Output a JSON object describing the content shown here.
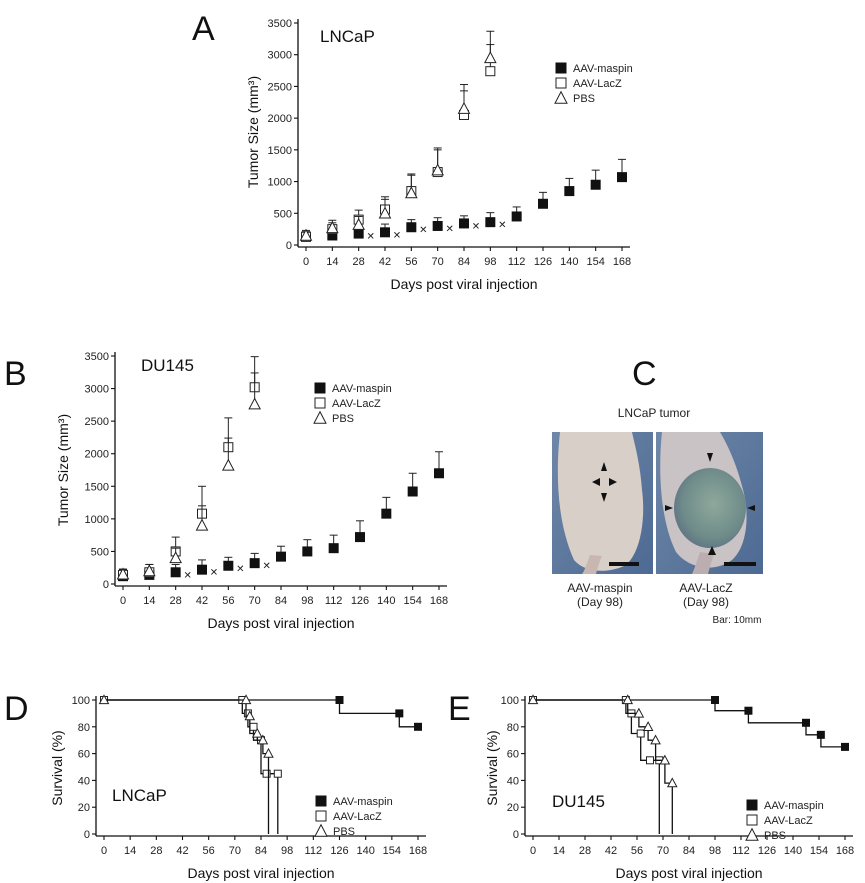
{
  "panels": {
    "A": {
      "letter": "A",
      "cell_line": "LNCaP"
    },
    "B": {
      "letter": "B",
      "cell_line": "DU145"
    },
    "C": {
      "letter": "C"
    },
    "D": {
      "letter": "D",
      "cell_line": "LNCaP"
    },
    "E": {
      "letter": "E",
      "cell_line": "DU145"
    }
  },
  "legend": {
    "maspin": "AAV-maspin",
    "lacz": "AAV-LacZ",
    "pbs": "PBS"
  },
  "photo": {
    "title": "LNCaP tumor",
    "left_caption_1": "AAV-maspin",
    "left_caption_2": "(Day 98)",
    "right_caption_1": "AAV-LacZ",
    "right_caption_2": "(Day 98)",
    "scale_note": "Bar: 10mm"
  },
  "chart_data": [
    {
      "id": "A",
      "type": "scatter",
      "title": "LNCaP",
      "xlabel": "Days post viral injection",
      "ylabel": "Tumor Size (mm³)",
      "xticks": [
        0,
        14,
        28,
        42,
        56,
        70,
        84,
        98,
        112,
        126,
        140,
        154,
        168
      ],
      "yticks": [
        0,
        500,
        1000,
        1500,
        2000,
        2500,
        3000,
        3500
      ],
      "ylim": [
        0,
        3500
      ],
      "series": [
        {
          "name": "AAV-maspin",
          "marker": "filled-square",
          "x": [
            0,
            14,
            28,
            42,
            56,
            70,
            84,
            98,
            112,
            126,
            140,
            154,
            168
          ],
          "y": [
            130,
            150,
            180,
            200,
            280,
            300,
            340,
            360,
            450,
            650,
            850,
            950,
            1070
          ],
          "err": [
            60,
            60,
            100,
            130,
            120,
            130,
            120,
            150,
            150,
            180,
            200,
            230,
            280
          ]
        },
        {
          "name": "AAV-LacZ",
          "marker": "open-square",
          "x": [
            0,
            14,
            28,
            42,
            56,
            70,
            84,
            98
          ],
          "y": [
            130,
            250,
            400,
            560,
            850,
            1150,
            2050,
            2740
          ],
          "err": [
            80,
            100,
            150,
            200,
            250,
            350,
            380,
            420
          ]
        },
        {
          "name": "PBS",
          "marker": "open-triangle",
          "x": [
            0,
            14,
            28,
            42,
            56,
            70,
            84,
            98
          ],
          "y": [
            150,
            270,
            320,
            500,
            820,
            1180,
            2150,
            2950
          ],
          "err": [
            80,
            120,
            130,
            220,
            300,
            350,
            380,
            420
          ]
        }
      ],
      "significance_marks": {
        "symbol": "✕",
        "x": [
          28,
          42,
          56,
          70,
          84,
          98
        ]
      }
    },
    {
      "id": "B",
      "type": "scatter",
      "title": "DU145",
      "xlabel": "Days post viral injection",
      "ylabel": "Tumor Size (mm³)",
      "xticks": [
        0,
        14,
        28,
        42,
        56,
        70,
        84,
        98,
        112,
        126,
        140,
        154,
        168
      ],
      "yticks": [
        0,
        500,
        1000,
        1500,
        2000,
        2500,
        3000,
        3500
      ],
      "ylim": [
        0,
        3500
      ],
      "series": [
        {
          "name": "AAV-maspin",
          "marker": "filled-square",
          "x": [
            0,
            14,
            28,
            42,
            56,
            70,
            84,
            98,
            112,
            126,
            140,
            154,
            168
          ],
          "y": [
            120,
            140,
            180,
            220,
            280,
            320,
            420,
            500,
            550,
            720,
            1080,
            1420,
            1700
          ],
          "err": [
            80,
            100,
            120,
            150,
            130,
            150,
            160,
            180,
            200,
            250,
            250,
            280,
            330
          ]
        },
        {
          "name": "AAV-LacZ",
          "marker": "open-square",
          "x": [
            0,
            14,
            28,
            42,
            56,
            70
          ],
          "y": [
            140,
            180,
            500,
            1080,
            2100,
            3020
          ],
          "err": [
            80,
            120,
            220,
            420,
            450,
            470
          ]
        },
        {
          "name": "PBS",
          "marker": "open-triangle",
          "x": [
            0,
            14,
            28,
            42,
            56,
            70
          ],
          "y": [
            150,
            200,
            400,
            900,
            1820,
            2760
          ],
          "err": [
            80,
            100,
            150,
            300,
            420,
            480
          ]
        }
      ],
      "significance_marks": {
        "symbol": "✕",
        "x": [
          28,
          42,
          56,
          70
        ]
      }
    },
    {
      "id": "D",
      "type": "line",
      "title": "LNCaP",
      "xlabel": "Days post viral injection",
      "ylabel": "Survival (%)",
      "xticks": [
        0,
        14,
        28,
        42,
        56,
        70,
        84,
        98,
        112,
        126,
        140,
        154,
        168
      ],
      "yticks": [
        0,
        20,
        40,
        60,
        80,
        100
      ],
      "ylim": [
        0,
        100
      ],
      "step": true,
      "series": [
        {
          "name": "AAV-maspin",
          "marker": "filled-square",
          "x": [
            0,
            126,
            126,
            158,
            158,
            168
          ],
          "y": [
            100,
            100,
            90,
            90,
            80,
            80
          ]
        },
        {
          "name": "AAV-LacZ",
          "marker": "open-square",
          "x": [
            0,
            74,
            74,
            77,
            77,
            80,
            80,
            84,
            84,
            87,
            87,
            93,
            93
          ],
          "y": [
            100,
            100,
            90,
            90,
            80,
            80,
            70,
            70,
            45,
            45,
            45,
            45,
            0
          ]
        },
        {
          "name": "PBS",
          "marker": "open-triangle",
          "x": [
            0,
            76,
            76,
            78,
            78,
            82,
            82,
            85,
            85,
            88,
            88
          ],
          "y": [
            100,
            100,
            88,
            88,
            75,
            75,
            70,
            70,
            60,
            60,
            0
          ]
        }
      ]
    },
    {
      "id": "E",
      "type": "line",
      "title": "DU145",
      "xlabel": "Days post viral injection",
      "ylabel": "Survival (%)",
      "xticks": [
        0,
        14,
        28,
        42,
        56,
        70,
        84,
        98,
        112,
        126,
        140,
        154,
        168
      ],
      "yticks": [
        0,
        20,
        40,
        60,
        80,
        100
      ],
      "ylim": [
        0,
        100
      ],
      "step": true,
      "series": [
        {
          "name": "AAV-maspin",
          "marker": "filled-square",
          "x": [
            0,
            98,
            98,
            116,
            116,
            147,
            147,
            155,
            155,
            168
          ],
          "y": [
            100,
            100,
            92,
            92,
            83,
            83,
            74,
            74,
            65,
            65
          ]
        },
        {
          "name": "AAV-LacZ",
          "marker": "open-square",
          "x": [
            0,
            50,
            50,
            53,
            53,
            58,
            58,
            63,
            63,
            68,
            68
          ],
          "y": [
            100,
            100,
            90,
            90,
            75,
            75,
            55,
            55,
            55,
            55,
            0
          ]
        },
        {
          "name": "PBS",
          "marker": "open-triangle",
          "x": [
            0,
            51,
            51,
            57,
            57,
            62,
            62,
            66,
            66,
            71,
            71,
            75,
            75
          ],
          "y": [
            100,
            100,
            90,
            90,
            80,
            80,
            70,
            70,
            55,
            55,
            38,
            38,
            0
          ]
        }
      ]
    }
  ]
}
